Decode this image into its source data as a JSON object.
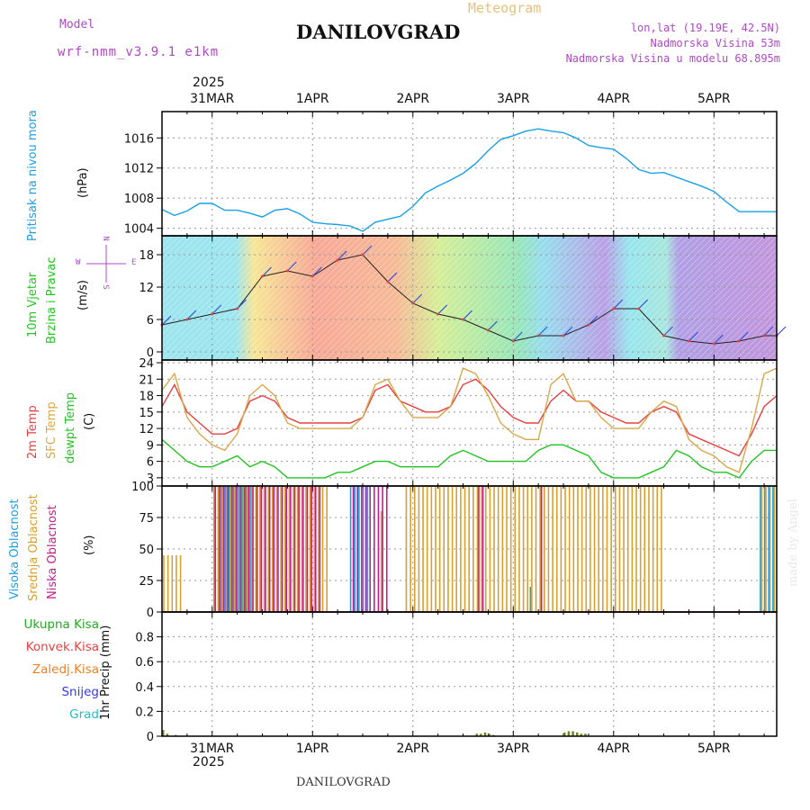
{
  "header": {
    "model_label": "Model",
    "model_name": "wrf-nmm_v3.9.1 e1km",
    "title": "DANILOVGRAD",
    "meteogram_label": "Meteogram",
    "lonlat": "lon,lat (19.19E, 42.5N)",
    "elevation": "Nadmorska Visina 53m",
    "model_elevation": "Nadmorska Visina u modelu 68.895m",
    "year_label": "2025"
  },
  "footer": {
    "station": "DANILOVGRAD",
    "year_label": "2025"
  },
  "signature": "made by Angel",
  "colors": {
    "pressure": "#1aa0e6",
    "temp2m": "#e84040",
    "sfc_temp": "#d8a848",
    "dewpoint": "#22c422",
    "high_cloud": "#1aa0e6",
    "mid_cloud": "#d8a030",
    "low_cloud": "#c0208a",
    "total_precip": "#22aa22",
    "conv_precip": "#e84040",
    "frz_precip": "#f08020",
    "snow": "#3838e0",
    "graupel": "#20c0c0"
  },
  "panels": {
    "pressure": {
      "label": "Pritisak na nivou mora",
      "unit": "(hPa)"
    },
    "wind": {
      "label1": "10m Vjetar",
      "label2": "Brzina i Pravac",
      "unit": "(m/s)",
      "compass": {
        "n": "N",
        "s": "S",
        "e": "E",
        "w": "W"
      }
    },
    "temperature": {
      "label1": "2m Temp",
      "label2": "SFC Temp",
      "label3": "dewpt Temp",
      "unit": "(C)"
    },
    "clouds": {
      "label1": "Visoka Oblacnost",
      "label2": "Srednja Oblacnost",
      "label3": "Niska Oblacnost",
      "unit": "(%)"
    },
    "precip": {
      "legend": [
        "Ukupna Kisa",
        "Konvek.Kisa",
        "Zaledj.Kisa",
        "Snijeg",
        "Grad"
      ],
      "unit": "1hr Precip (mm)"
    }
  },
  "chart_data": [
    {
      "type": "line",
      "name": "pressure",
      "x_unit": "hours from 2025-03-30 12:00 UTC",
      "xticks": [
        "31MAR",
        "1APR",
        "2APR",
        "3APR",
        "4APR",
        "5APR"
      ],
      "ylim": [
        1003,
        1019.5
      ],
      "yticks": [
        1004,
        1008,
        1012,
        1016
      ],
      "series": [
        {
          "x": [
            0,
            3,
            6,
            9,
            12,
            15,
            18,
            21,
            24,
            27,
            30,
            33,
            36,
            39,
            42,
            45,
            48,
            51,
            54,
            57,
            60,
            63,
            66,
            69,
            72,
            75,
            78,
            81,
            84,
            87,
            90,
            93,
            96,
            99,
            102,
            105,
            108,
            111,
            114,
            117,
            120,
            123,
            126,
            129,
            132,
            135,
            138,
            141,
            144,
            147
          ],
          "y": [
            1006.5,
            1005.7,
            1006.3,
            1007.3,
            1007.3,
            1006.4,
            1006.4,
            1006.0,
            1005.5,
            1006.4,
            1006.6,
            1005.9,
            1004.8,
            1004.6,
            1004.5,
            1004.3,
            1003.6,
            1004.8,
            1005.2,
            1005.6,
            1006.9,
            1008.7,
            1009.6,
            1010.4,
            1011.3,
            1012.6,
            1014.3,
            1015.8,
            1016.3,
            1016.9,
            1017.2,
            1016.9,
            1016.7,
            1016.0,
            1015.0,
            1014.7,
            1014.5,
            1013.3,
            1011.8,
            1011.3,
            1011.4,
            1010.8,
            1010.2,
            1009.6,
            1008.9,
            1007.5,
            1006.2,
            1006.2,
            1006.2,
            1006.2
          ]
        }
      ]
    },
    {
      "type": "line",
      "name": "wind speed (with barbs)",
      "ylim": [
        -1.5,
        21.5
      ],
      "yticks": [
        0,
        6,
        12,
        18
      ],
      "series": [
        {
          "x": [
            0,
            6,
            12,
            18,
            24,
            30,
            36,
            42,
            48,
            54,
            60,
            66,
            72,
            78,
            84,
            90,
            96,
            102,
            108,
            114,
            120,
            126,
            132,
            138,
            144,
            147
          ],
          "y": [
            5,
            6,
            7,
            8,
            14,
            15,
            14,
            17,
            18,
            13,
            9,
            7,
            6,
            4,
            2,
            3,
            3,
            5,
            8,
            8,
            3,
            2,
            1.5,
            2,
            3,
            3
          ]
        }
      ]
    },
    {
      "type": "line",
      "name": "temperature",
      "ylim": [
        1.5,
        24.5
      ],
      "yticks": [
        3,
        6,
        9,
        12,
        15,
        18,
        21,
        24
      ],
      "series": [
        {
          "x": [
            0,
            3,
            6,
            9,
            12,
            15,
            18,
            21,
            24,
            27,
            30,
            33,
            36,
            39,
            42,
            45,
            48,
            51,
            54,
            57,
            60,
            63,
            66,
            69,
            72,
            75,
            78,
            81,
            84,
            87,
            90,
            93,
            96,
            99,
            102,
            105,
            108,
            111,
            114,
            117,
            120,
            123,
            126,
            129,
            132,
            135,
            138,
            141,
            144,
            147
          ],
          "y": [
            16,
            20,
            15,
            13,
            11,
            11,
            12,
            17,
            18,
            17,
            14,
            13,
            13,
            13,
            13,
            13,
            14,
            19,
            20,
            17,
            16,
            15,
            15,
            16,
            20,
            21,
            19,
            16,
            14,
            13,
            13,
            17,
            19,
            17,
            17,
            15,
            14,
            13,
            13,
            15,
            16,
            15,
            11,
            10,
            9,
            8,
            7,
            11,
            16,
            18
          ]
        },
        {
          "x": [
            0,
            3,
            6,
            9,
            12,
            15,
            18,
            21,
            24,
            27,
            30,
            33,
            36,
            39,
            42,
            45,
            48,
            51,
            54,
            57,
            60,
            63,
            66,
            69,
            72,
            75,
            78,
            81,
            84,
            87,
            90,
            93,
            96,
            99,
            102,
            105,
            108,
            111,
            114,
            117,
            120,
            123,
            126,
            129,
            132,
            135,
            138,
            141,
            144,
            147
          ],
          "y": [
            19,
            22,
            14,
            11,
            9,
            8,
            11,
            18,
            20,
            18,
            13,
            12,
            12,
            12,
            12,
            12,
            14,
            20,
            21,
            17,
            14,
            14,
            14,
            16,
            23,
            22,
            18,
            13,
            11,
            10,
            10,
            20,
            22,
            17,
            17,
            14,
            12,
            12,
            12,
            15,
            17,
            16,
            10,
            8,
            7,
            5,
            4,
            12,
            22,
            23
          ]
        },
        {
          "x": [
            0,
            3,
            6,
            9,
            12,
            15,
            18,
            21,
            24,
            27,
            30,
            33,
            36,
            39,
            42,
            45,
            48,
            51,
            54,
            57,
            60,
            63,
            66,
            69,
            72,
            75,
            78,
            81,
            84,
            87,
            90,
            93,
            96,
            99,
            102,
            105,
            108,
            111,
            114,
            117,
            120,
            123,
            126,
            129,
            132,
            135,
            138,
            141,
            144,
            147
          ],
          "y": [
            10,
            8,
            6,
            5,
            5,
            6,
            7,
            5,
            6,
            5,
            3,
            3,
            3,
            3,
            4,
            4,
            5,
            6,
            6,
            5,
            5,
            5,
            5,
            7,
            8,
            7,
            6,
            6,
            6,
            6,
            8,
            9,
            9,
            8,
            7,
            4,
            3,
            3,
            3,
            4,
            5,
            8,
            7,
            5,
            4,
            4,
            3,
            6,
            8,
            8
          ]
        }
      ]
    },
    {
      "type": "bar",
      "name": "cloud cover",
      "ylim": [
        0,
        100
      ],
      "yticks": [
        0,
        25,
        50,
        75,
        100
      ],
      "series": [
        {
          "values_note": "high cloud percent per hour",
          "segments": [
            {
              "from": 14,
              "to": 22,
              "value": 100
            },
            {
              "from": 45,
              "to": 50,
              "value": 100
            },
            {
              "from": 88,
              "to": 89,
              "value": 20
            },
            {
              "from": 143,
              "to": 147,
              "value": 100
            }
          ]
        },
        {
          "values_note": "mid cloud percent per hour",
          "segments": [
            {
              "from": 0,
              "to": 5,
              "value": 45
            },
            {
              "from": 12,
              "to": 40,
              "value": 100
            },
            {
              "from": 52,
              "to": 53,
              "value": 80
            },
            {
              "from": 58,
              "to": 120,
              "value": 100
            },
            {
              "from": 143,
              "to": 147,
              "value": 100
            }
          ]
        },
        {
          "values_note": "low cloud percent per hour",
          "segments": [
            {
              "from": 12,
              "to": 38,
              "value": 100
            },
            {
              "from": 45,
              "to": 54,
              "value": 100
            },
            {
              "from": 75,
              "to": 77,
              "value": 100
            },
            {
              "from": 90,
              "to": 91,
              "value": 100
            }
          ]
        }
      ]
    },
    {
      "type": "bar",
      "name": "precipitation",
      "ylim": [
        0,
        1
      ],
      "yticks": [
        0,
        0.2,
        0.4,
        0.6,
        0.8
      ],
      "series": [
        {
          "x": [
            0,
            1,
            3,
            75,
            76,
            77,
            78,
            79,
            96,
            97,
            98,
            99,
            100,
            101
          ],
          "y": [
            0.05,
            0.02,
            0.01,
            0.02,
            0.02,
            0.03,
            0.02,
            0.01,
            0.03,
            0.04,
            0.04,
            0.03,
            0.02,
            0.02
          ]
        }
      ]
    }
  ]
}
